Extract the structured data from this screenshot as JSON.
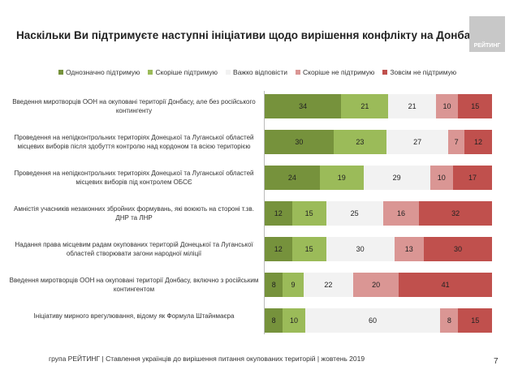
{
  "title": "Наскільки Ви підтримуєте наступні ініціативи щодо вирішення конфлікту на Донбасі? ...",
  "logo_text": "РЕЙТИНГ",
  "footer": "група РЕЙТИНГ | Ставлення українців до вирішення питання окупованих територій  | жовтень  2019",
  "page_number": "7",
  "chart_data": {
    "type": "bar",
    "orientation": "horizontal-stacked",
    "categories": [
      "Введення миротворців ООН на окуповані території Донбасу, але без російського контингенту",
      "Проведення на непідконтрольних територіях Донецької та Луганської областей місцевих виборів після здобуття контролю над кордоном та всією територією",
      "Проведення на непідконтрольних територіях Донецької та Луганської областей місцевих виборів під контролем ОБСЄ",
      "Амністія учасників незаконних збройних формувань, які воюють на стороні т.зв. ДНР та ЛНР",
      "Надання права місцевим радам окупованих територій Донецької та Луганської областей створювати загони народної міліції",
      "Введення миротворців ООН на окуповані території Донбасу, включно з російським контингентом",
      "Ініціативу мирного врегулювання, відому як Формула Штайнмаєра"
    ],
    "series": [
      {
        "name": "Однозначно підтримую",
        "color": "#76923c",
        "values": [
          34,
          30,
          24,
          12,
          12,
          8,
          8
        ]
      },
      {
        "name": "Скоріше підтримую",
        "color": "#9bbb59",
        "values": [
          21,
          23,
          19,
          15,
          15,
          9,
          10
        ]
      },
      {
        "name": "Важко відповісти",
        "color": "#f2f2f2",
        "values": [
          21,
          27,
          29,
          25,
          30,
          22,
          60
        ]
      },
      {
        "name": "Скоріше не підтримую",
        "color": "#da9694",
        "values": [
          10,
          7,
          10,
          16,
          13,
          20,
          8
        ]
      },
      {
        "name": "Зовсім не підтримую",
        "color": "#c0504d",
        "values": [
          15,
          12,
          17,
          32,
          30,
          41,
          15
        ]
      }
    ],
    "legend_position": "top",
    "grid": false
  }
}
